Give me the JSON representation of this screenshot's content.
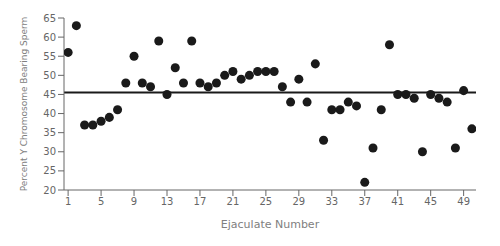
{
  "chart_data": {
    "type": "scatter",
    "xlabel": "Ejaculate Number",
    "ylabel": "Percent Y Chromosome Bearing Sperm",
    "x": [
      1,
      2,
      3,
      4,
      5,
      6,
      7,
      8,
      9,
      10,
      11,
      12,
      13,
      14,
      15,
      16,
      17,
      18,
      19,
      20,
      21,
      22,
      23,
      24,
      25,
      26,
      27,
      28,
      29,
      30,
      31,
      32,
      33,
      34,
      35,
      36,
      37,
      38,
      39,
      40,
      41,
      42,
      43,
      44,
      45,
      46,
      47,
      48,
      49,
      50
    ],
    "values": [
      56,
      63,
      37,
      37,
      38,
      39,
      41,
      48,
      55,
      48,
      47,
      59,
      45,
      52,
      48,
      59,
      48,
      47,
      48,
      50,
      51,
      49,
      50,
      51,
      51,
      51,
      47,
      43,
      49,
      43,
      53,
      33,
      41,
      41,
      43,
      42,
      22,
      31,
      41,
      58,
      45,
      45,
      44,
      30,
      45,
      44,
      43,
      31,
      46,
      36
    ],
    "color": "#1a1a1a",
    "hline": {
      "y": 45.5,
      "color": "#1a1a1a"
    },
    "xlim": [
      0.5,
      50.5
    ],
    "ylim": [
      20,
      65
    ],
    "xticks": [
      1,
      5,
      9,
      13,
      17,
      21,
      25,
      29,
      33,
      37,
      41,
      45,
      49
    ],
    "yticks": [
      20,
      25,
      30,
      35,
      40,
      45,
      50,
      55,
      60,
      65
    ],
    "grid": false
  }
}
